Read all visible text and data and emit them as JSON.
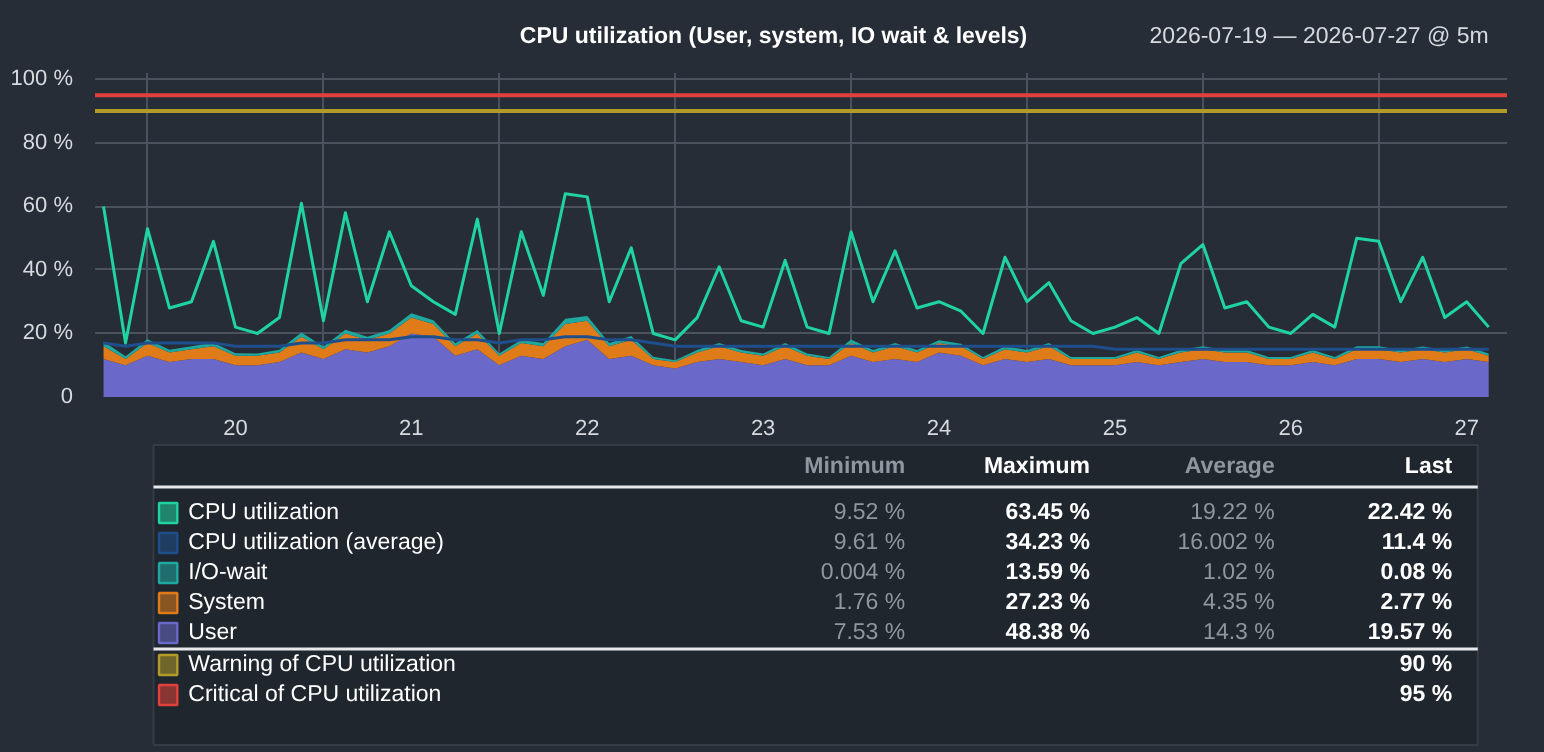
{
  "chart_data": {
    "type": "area",
    "title": "CPU utilization (User, system, IO wait & levels)",
    "subtitle": "2026-07-19 — 2026-07-27 @ 5m",
    "stacked": true,
    "grid": true,
    "legend": "bottom",
    "x": [
      "2026-07-19T06:00",
      "2026-07-19T09:00",
      "2026-07-19T12:00",
      "2026-07-19T15:00",
      "2026-07-19T18:00",
      "2026-07-19T21:00",
      "2026-07-20T00:00",
      "2026-07-20T03:00",
      "2026-07-20T06:00",
      "2026-07-20T09:00",
      "2026-07-20T12:00",
      "2026-07-20T15:00",
      "2026-07-20T18:00",
      "2026-07-20T21:00",
      "2026-07-21T00:00",
      "2026-07-21T03:00",
      "2026-07-21T06:00",
      "2026-07-21T09:00",
      "2026-07-21T12:00",
      "2026-07-21T15:00",
      "2026-07-21T18:00",
      "2026-07-21T21:00",
      "2026-07-22T00:00",
      "2026-07-22T03:00",
      "2026-07-22T06:00",
      "2026-07-22T09:00",
      "2026-07-22T12:00",
      "2026-07-22T15:00",
      "2026-07-22T18:00",
      "2026-07-22T21:00",
      "2026-07-23T00:00",
      "2026-07-23T03:00",
      "2026-07-23T06:00",
      "2026-07-23T09:00",
      "2026-07-23T12:00",
      "2026-07-23T15:00",
      "2026-07-23T18:00",
      "2026-07-23T21:00",
      "2026-07-24T00:00",
      "2026-07-24T03:00",
      "2026-07-24T06:00",
      "2026-07-24T09:00",
      "2026-07-24T12:00",
      "2026-07-24T15:00",
      "2026-07-24T18:00",
      "2026-07-24T21:00",
      "2026-07-25T00:00",
      "2026-07-25T03:00",
      "2026-07-25T06:00",
      "2026-07-25T09:00",
      "2026-07-25T12:00",
      "2026-07-25T15:00",
      "2026-07-25T18:00",
      "2026-07-25T21:00",
      "2026-07-26T00:00",
      "2026-07-26T03:00",
      "2026-07-26T06:00",
      "2026-07-26T09:00",
      "2026-07-26T12:00",
      "2026-07-26T15:00",
      "2026-07-26T18:00",
      "2026-07-26T21:00",
      "2026-07-27T00:00",
      "2026-07-27T03:00"
    ],
    "series": [
      {
        "name": "User",
        "color": "#6a68c8",
        "values": [
          12,
          10,
          13,
          11,
          12,
          12,
          10,
          10,
          11,
          14,
          12,
          15,
          14,
          16,
          20,
          19,
          13,
          15,
          10,
          13,
          12,
          16,
          18,
          12,
          13,
          10,
          9,
          11,
          12,
          11,
          10,
          12,
          10,
          10,
          13,
          11,
          12,
          11,
          14,
          13,
          10,
          12,
          11,
          12,
          10,
          10,
          10,
          11,
          10,
          11,
          12,
          11,
          11,
          10,
          10,
          11,
          10,
          12,
          12,
          11,
          12,
          11,
          12,
          11
        ]
      },
      {
        "name": "System",
        "color": "#e07b1a",
        "values": [
          4,
          2,
          4,
          3,
          3,
          4,
          3,
          3,
          3,
          5,
          3,
          5,
          4,
          4,
          5,
          4,
          3,
          5,
          3,
          4,
          4,
          7,
          6,
          4,
          5,
          2,
          2,
          3,
          4,
          3,
          3,
          4,
          3,
          2,
          4,
          3,
          4,
          3,
          3,
          3,
          2,
          3,
          3,
          4,
          2,
          2,
          2,
          3,
          2,
          3,
          3,
          3,
          3,
          2,
          2,
          3,
          2,
          3,
          3,
          3,
          3,
          3,
          3,
          2
        ]
      },
      {
        "name": "I/O-wait",
        "color": "#1fa8a0",
        "values": [
          1.5,
          0.8,
          1.2,
          0.9,
          1,
          1.1,
          0.8,
          0.7,
          0.9,
          1.3,
          0.9,
          1.2,
          1,
          1.1,
          1.4,
          1.2,
          0.9,
          1.1,
          0.7,
          1,
          1,
          1.6,
          1.5,
          1,
          1.2,
          0.7,
          0.6,
          0.8,
          1,
          0.8,
          0.7,
          1,
          0.7,
          0.6,
          1.1,
          0.8,
          1,
          0.8,
          0.9,
          0.8,
          0.6,
          1,
          0.8,
          1,
          0.6,
          0.6,
          0.6,
          0.8,
          0.6,
          0.9,
          1,
          0.8,
          0.8,
          0.6,
          0.6,
          0.8,
          0.6,
          1,
          1,
          0.8,
          0.9,
          0.8,
          0.9,
          0.7
        ]
      },
      {
        "name": "CPU utilization (average)",
        "color": "#1f4e8c",
        "type": "line",
        "values": [
          17,
          16,
          17,
          17,
          17,
          17,
          16,
          16,
          16,
          17,
          17,
          18,
          18,
          18,
          19,
          19,
          18,
          18,
          17,
          18,
          18,
          19,
          19,
          18,
          18,
          17,
          16,
          16,
          16,
          16,
          16,
          16,
          16,
          16,
          16,
          16,
          16,
          16,
          16,
          16,
          16,
          16,
          16,
          16,
          16,
          16,
          15,
          15,
          15,
          15,
          15,
          15,
          15,
          15,
          15,
          15,
          15,
          15,
          15,
          15,
          15,
          15,
          15,
          15
        ]
      },
      {
        "name": "CPU utilization",
        "color": "#1fd4a0",
        "type": "line",
        "values": [
          60,
          17,
          53,
          28,
          30,
          49,
          22,
          20,
          25,
          61,
          24,
          58,
          30,
          52,
          35,
          30,
          26,
          56,
          20,
          52,
          32,
          64,
          63,
          30,
          47,
          20,
          18,
          25,
          41,
          24,
          22,
          43,
          22,
          20,
          52,
          30,
          46,
          28,
          30,
          27,
          20,
          44,
          30,
          36,
          24,
          20,
          22,
          25,
          20,
          42,
          48,
          28,
          30,
          22,
          20,
          26,
          22,
          50,
          49,
          30,
          44,
          25,
          30,
          22
        ]
      }
    ],
    "xlim": [
      "2026-07-19T04:50",
      "2026-07-27T05:30"
    ],
    "xticks": [
      {
        "value": "2026-07-19T12:00",
        "label": null
      },
      {
        "value": "2026-07-20",
        "label": "20"
      },
      {
        "value": "2026-07-20T12:00",
        "label": null
      },
      {
        "value": "2026-07-21",
        "label": "21"
      },
      {
        "value": "2026-07-21T12:00",
        "label": null
      },
      {
        "value": "2026-07-22",
        "label": "22"
      },
      {
        "value": "2026-07-22T12:00",
        "label": null
      },
      {
        "value": "2026-07-23",
        "label": "23"
      },
      {
        "value": "2026-07-23T12:00",
        "label": null
      },
      {
        "value": "2026-07-24",
        "label": "24"
      },
      {
        "value": "2026-07-24T12:00",
        "label": null
      },
      {
        "value": "2026-07-25",
        "label": "25"
      },
      {
        "value": "2026-07-25T12:00",
        "label": null
      },
      {
        "value": "2026-07-26",
        "label": "26"
      },
      {
        "value": "2026-07-26T12:00",
        "label": null
      },
      {
        "value": "2026-07-27",
        "label": "27"
      }
    ],
    "ylim": [
      0,
      102
    ],
    "yticks": [
      0,
      {
        "value": 20,
        "label": "20 %"
      },
      {
        "value": 40,
        "label": "40 %"
      },
      {
        "value": 60,
        "label": "60 %"
      },
      {
        "value": 80,
        "label": "80 %"
      },
      {
        "value": 100,
        "label": "100 %"
      }
    ],
    "ref_lines": [
      {
        "axis": "y",
        "value": 90,
        "label": "Warning of CPU utilization",
        "color": "#b39b2a"
      },
      {
        "axis": "y",
        "value": 95,
        "label": "Critical of CPU utilization",
        "color": "#e0413a"
      }
    ],
    "annotations": [
      "Minimum",
      "Maximum",
      "Average",
      "Last",
      "9.52 %",
      "63.45 %",
      "19.22 %",
      "22.42 %",
      "9.61 %",
      "34.23 %",
      "16.002 %",
      "11.4 %",
      "0.004 %",
      "13.59 %",
      "1.02 %",
      "0.08 %",
      "1.76 %",
      "27.23 %",
      "4.35 %",
      "2.77 %",
      "7.53 %",
      "48.38 %",
      "14.3 %",
      "19.57 %",
      "90 %",
      "95 %"
    ]
  }
}
